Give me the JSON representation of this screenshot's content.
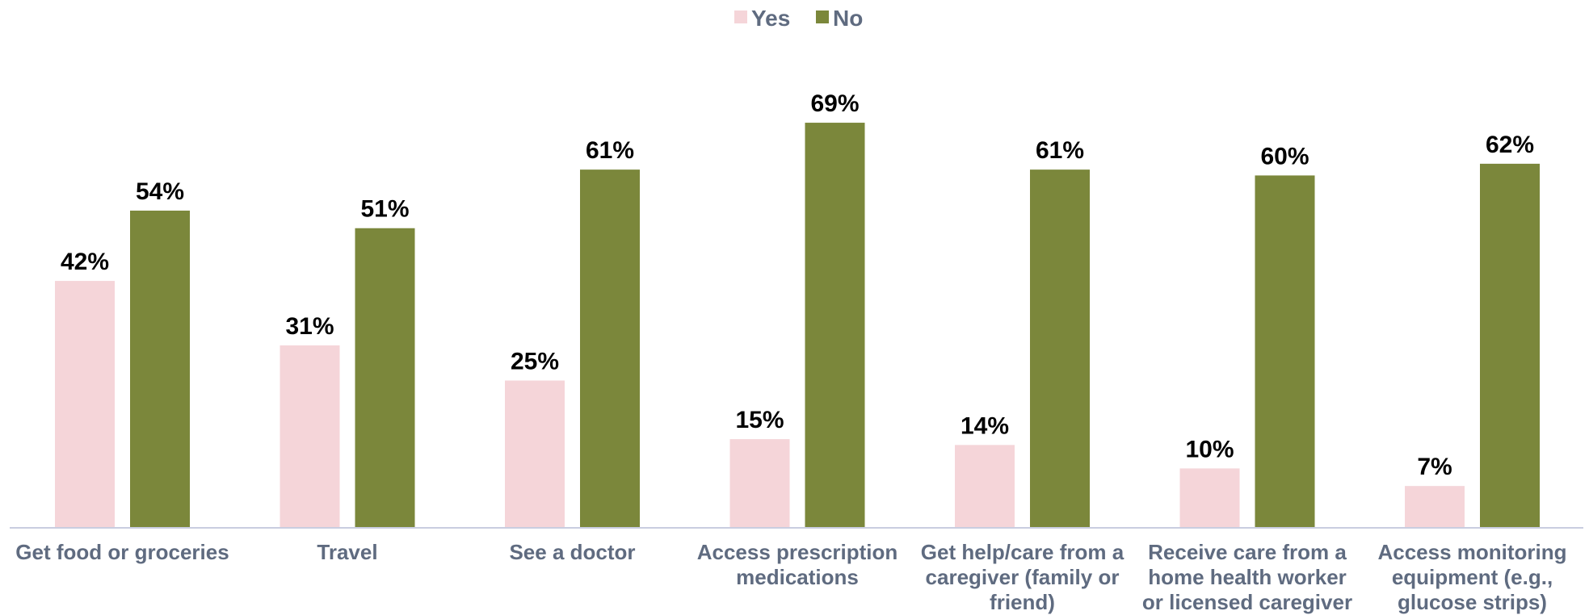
{
  "chart_data": {
    "type": "bar",
    "categories": [
      [
        "Get food or groceries"
      ],
      [
        "Travel"
      ],
      [
        "See a doctor"
      ],
      [
        "Access prescription",
        "medications"
      ],
      [
        "Get help/care from a",
        "caregiver (family or",
        "friend)"
      ],
      [
        "Receive care from a",
        "home health worker",
        "or licensed caregiver"
      ],
      [
        "Access monitoring",
        "equipment (e.g.,",
        "glucose strips)"
      ]
    ],
    "series": [
      {
        "name": "Yes",
        "color": "#F5D5D9",
        "values": [
          42,
          31,
          25,
          15,
          14,
          10,
          7
        ]
      },
      {
        "name": "No",
        "color": "#7B873B",
        "values": [
          54,
          51,
          61,
          69,
          61,
          60,
          62
        ]
      }
    ],
    "value_suffix": "%",
    "legend_position": "top-center",
    "ylim": [
      0,
      69
    ],
    "grid": false,
    "axis_color": "#C9CDE0",
    "label_color": "#5F6B80"
  }
}
